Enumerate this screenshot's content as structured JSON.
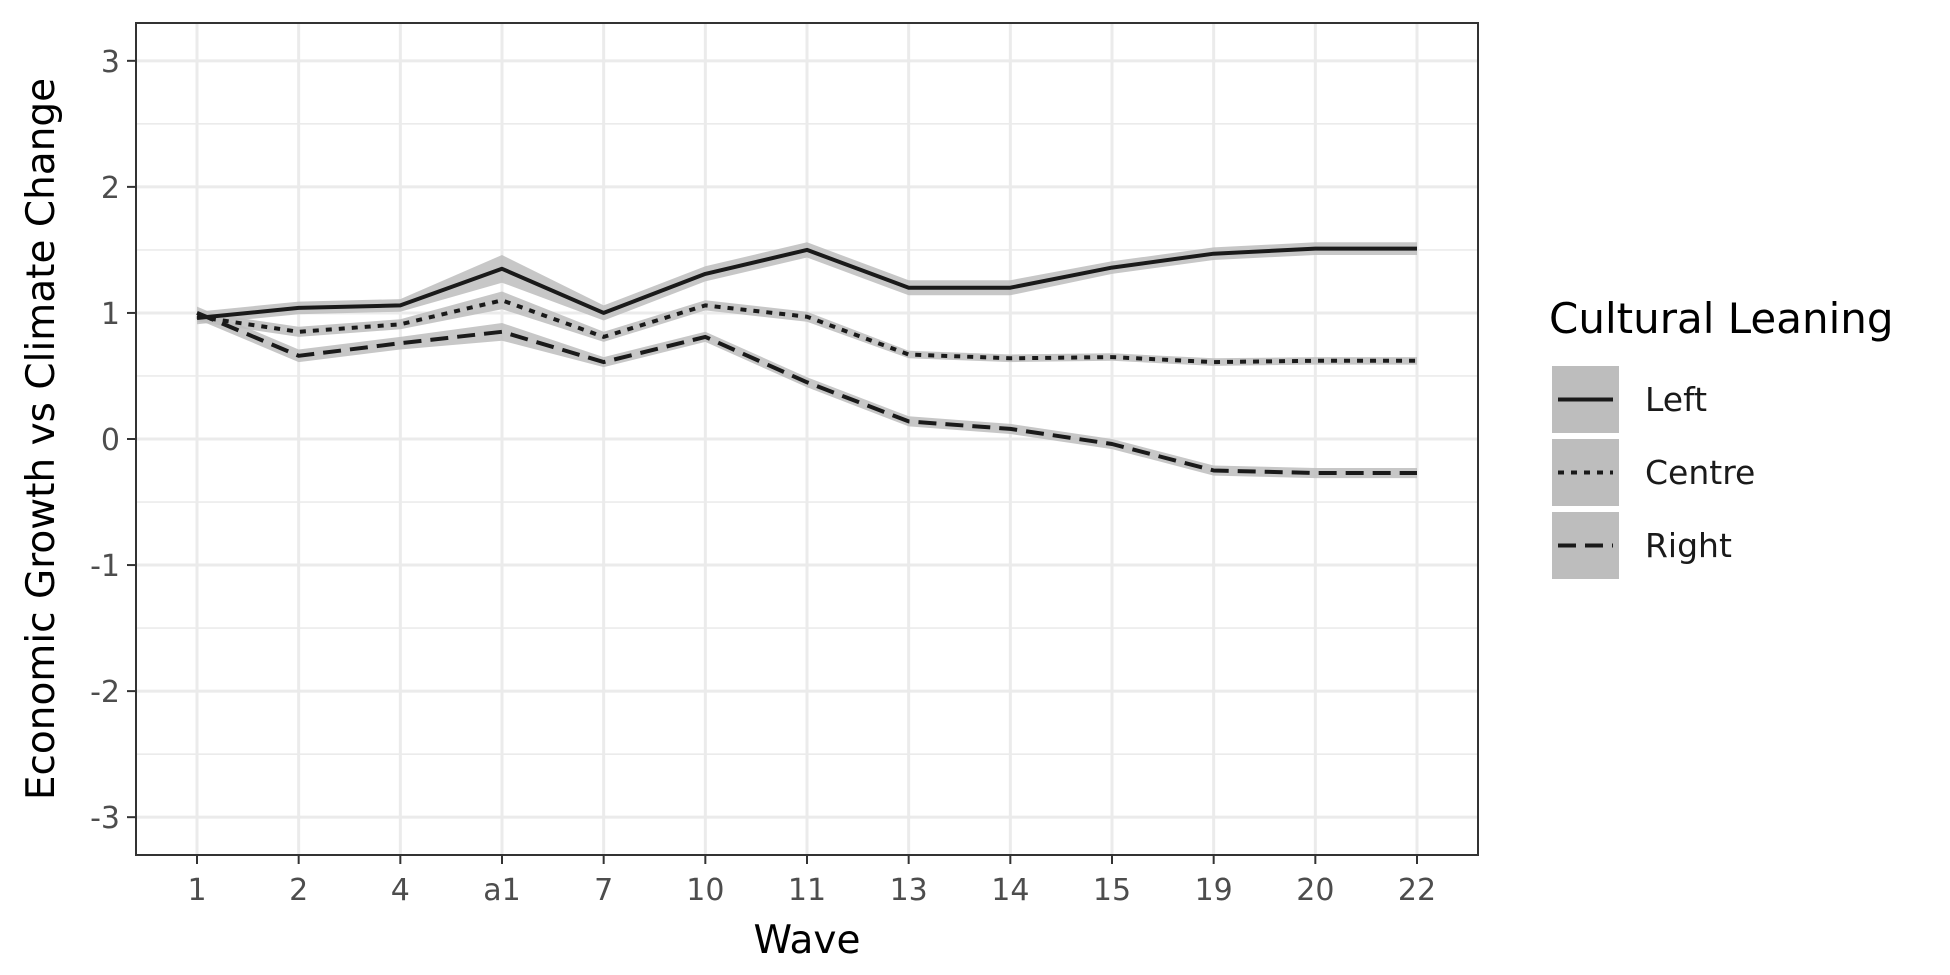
{
  "chart_data": {
    "type": "line",
    "title": "",
    "xlabel": "Wave",
    "ylabel": "Economic Growth vs Climate Change",
    "categories": [
      "1",
      "2",
      "4",
      "a1",
      "7",
      "10",
      "11",
      "13",
      "14",
      "15",
      "19",
      "20",
      "22"
    ],
    "ylim": [
      -3.3,
      3.3
    ],
    "yticks": [
      -3,
      -2,
      -1,
      0,
      1,
      2,
      3
    ],
    "grid": true,
    "legend_title": "Cultural Leaning",
    "legend_position": "right",
    "series": [
      {
        "name": "Left",
        "linestyle": "solid",
        "values": [
          0.96,
          1.04,
          1.06,
          1.35,
          1.0,
          1.31,
          1.5,
          1.2,
          1.2,
          1.36,
          1.47,
          1.51,
          1.51
        ],
        "ci_half_width": [
          0.05,
          0.05,
          0.05,
          0.11,
          0.06,
          0.06,
          0.06,
          0.06,
          0.06,
          0.05,
          0.05,
          0.05,
          0.05
        ]
      },
      {
        "name": "Centre",
        "linestyle": "dotted",
        "values": [
          0.97,
          0.85,
          0.91,
          1.1,
          0.81,
          1.06,
          0.97,
          0.67,
          0.64,
          0.65,
          0.61,
          0.62,
          0.62
        ],
        "ci_half_width": [
          0.04,
          0.04,
          0.04,
          0.07,
          0.04,
          0.04,
          0.04,
          0.03,
          0.03,
          0.03,
          0.03,
          0.03,
          0.03
        ]
      },
      {
        "name": "Right",
        "linestyle": "dashed",
        "values": [
          1.0,
          0.66,
          0.76,
          0.85,
          0.61,
          0.81,
          0.45,
          0.14,
          0.08,
          -0.04,
          -0.25,
          -0.27,
          -0.27
        ],
        "ci_half_width": [
          0.05,
          0.05,
          0.05,
          0.07,
          0.04,
          0.04,
          0.04,
          0.04,
          0.04,
          0.04,
          0.04,
          0.04,
          0.04
        ]
      }
    ],
    "colors": {
      "line": "#1a1a1a",
      "ribbon": "#bdbdbd",
      "grid": "#ebebeb",
      "panel_border": "#333333",
      "legend_key_bg": "#bdbdbd"
    }
  }
}
